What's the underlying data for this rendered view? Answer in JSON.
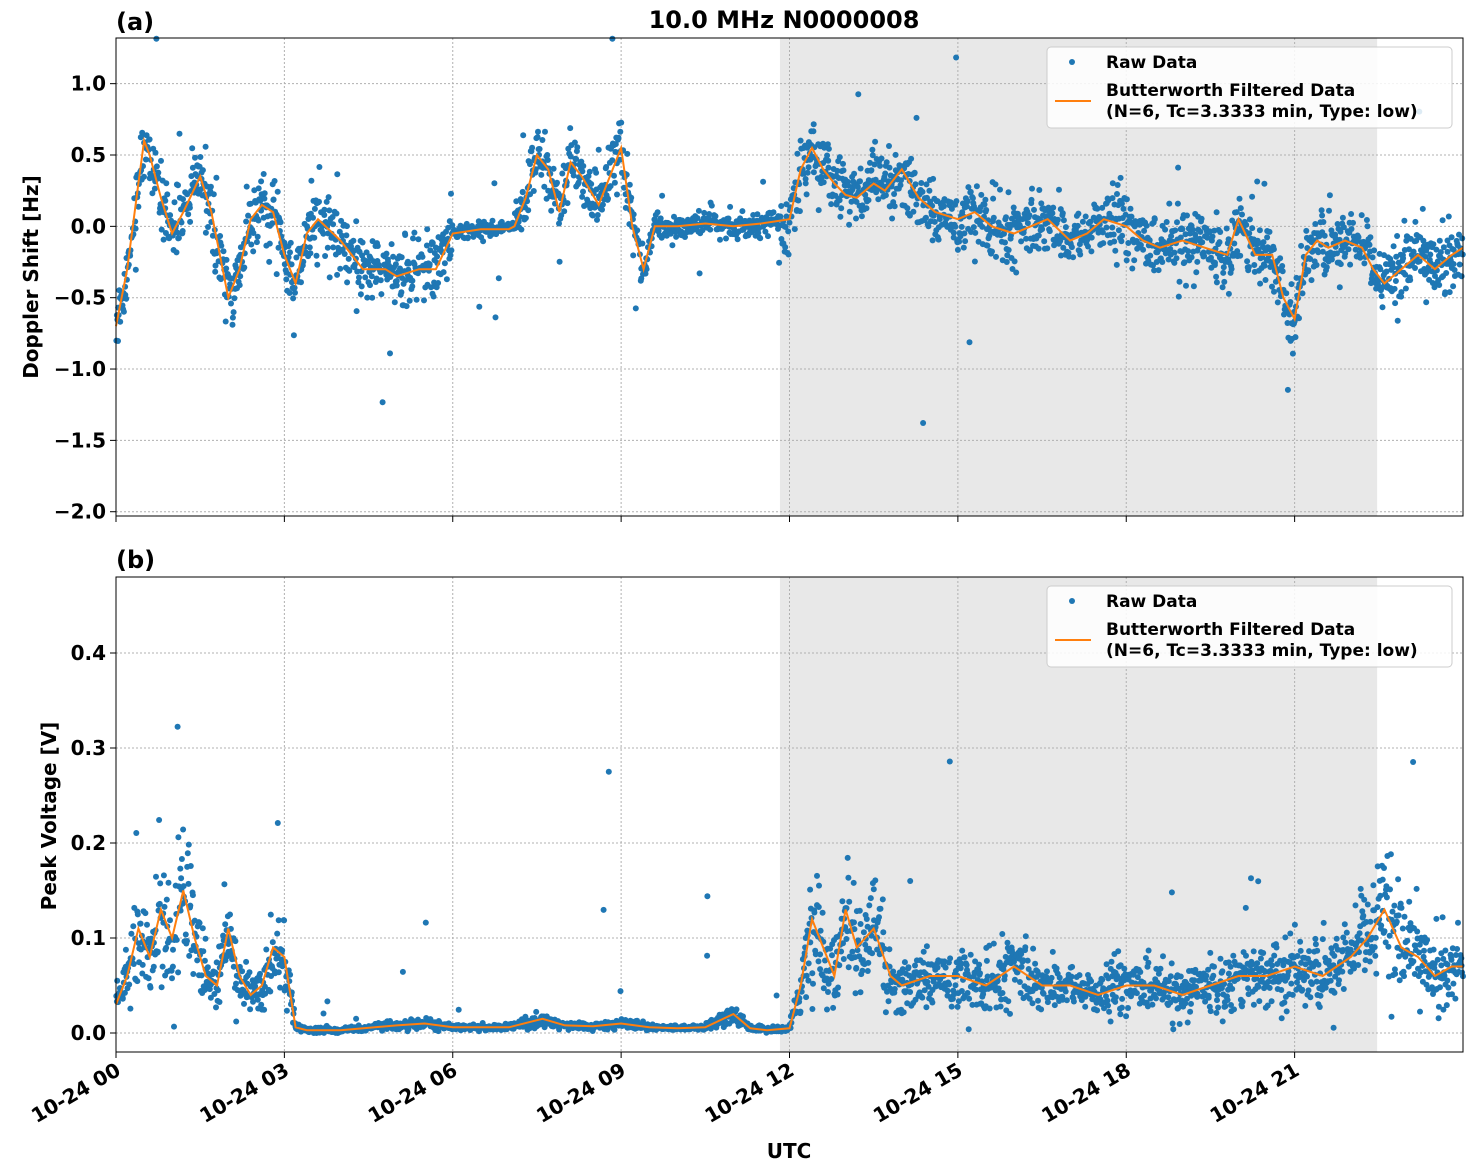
{
  "chart_data": [
    {
      "type": "scatter",
      "panel_label": "(a)",
      "title": "10.0 MHz N0000008",
      "xlabel": "",
      "ylabel": "Doppler Shift [Hz]",
      "xlim_hours": [
        0,
        24
      ],
      "ylim": [
        -2.03,
        1.32
      ],
      "yticks": [
        1.0,
        0.5,
        0.0,
        -0.5,
        -1.0,
        -1.5,
        -2.0
      ],
      "ytick_labels": [
        "1.0",
        "0.5",
        "0.0",
        "−0.5",
        "−1.0",
        "−1.5",
        "−2.0"
      ],
      "shaded_region_hours": [
        11.83,
        22.47
      ],
      "legend": {
        "placement": "top-right",
        "raw_label": "Raw Data",
        "filtered_label_line1": "Butterworth Filtered Data",
        "filtered_label_line2": "(N=6, Tc=3.3333 min, Type: low)"
      },
      "series": [
        {
          "name": "Butterworth Filtered Data",
          "color": "#ff7f0e",
          "x_hours": [
            0,
            0.2,
            0.4,
            0.5,
            0.6,
            0.8,
            1.0,
            1.2,
            1.5,
            1.7,
            2.0,
            2.2,
            2.4,
            2.6,
            2.8,
            3.0,
            3.2,
            3.4,
            3.6,
            4.0,
            4.4,
            4.8,
            5.0,
            5.4,
            5.7,
            6.0,
            6.5,
            7.0,
            7.1,
            7.3,
            7.5,
            7.7,
            7.9,
            8.1,
            8.3,
            8.6,
            9.0,
            9.2,
            9.4,
            9.6,
            10.0,
            10.5,
            11.0,
            11.5,
            12.0,
            12.2,
            12.4,
            12.6,
            12.8,
            13.0,
            13.2,
            13.5,
            13.7,
            14.0,
            14.3,
            14.6,
            15.0,
            15.3,
            15.6,
            16.0,
            16.3,
            16.6,
            17.0,
            17.3,
            17.6,
            18.0,
            18.3,
            18.6,
            19.0,
            19.4,
            19.8,
            20.0,
            20.3,
            20.6,
            20.8,
            21.0,
            21.2,
            21.4,
            21.6,
            21.9,
            22.2,
            22.4,
            22.6,
            22.9,
            23.2,
            23.5,
            23.8,
            24.0
          ],
          "y": [
            -0.7,
            -0.3,
            0.3,
            0.6,
            0.5,
            0.2,
            -0.05,
            0.1,
            0.35,
            0.1,
            -0.5,
            -0.3,
            0.05,
            0.15,
            0.1,
            -0.2,
            -0.4,
            -0.05,
            0.05,
            -0.1,
            -0.3,
            -0.3,
            -0.35,
            -0.3,
            -0.3,
            -0.05,
            -0.02,
            -0.02,
            0.0,
            0.2,
            0.5,
            0.4,
            0.1,
            0.45,
            0.35,
            0.15,
            0.55,
            0.0,
            -0.3,
            0.0,
            0.0,
            0.02,
            0.0,
            0.02,
            0.05,
            0.4,
            0.55,
            0.4,
            0.3,
            0.22,
            0.2,
            0.3,
            0.25,
            0.4,
            0.2,
            0.1,
            0.05,
            0.1,
            0.0,
            -0.05,
            0.0,
            0.05,
            -0.1,
            -0.05,
            0.05,
            0.0,
            -0.1,
            -0.15,
            -0.1,
            -0.15,
            -0.2,
            0.05,
            -0.2,
            -0.2,
            -0.5,
            -0.65,
            -0.2,
            -0.1,
            -0.15,
            -0.1,
            -0.15,
            -0.3,
            -0.4,
            -0.3,
            -0.2,
            -0.3,
            -0.2,
            -0.15
          ]
        },
        {
          "name": "Raw Data",
          "color": "#1f77b4",
          "note": "Dense scatter envelope around filtered trace; spread indicates noise"
        }
      ]
    },
    {
      "type": "scatter",
      "panel_label": "(b)",
      "title": "",
      "xlabel": "UTC",
      "ylabel": "Peak Voltage [V]",
      "xlim_hours": [
        0,
        24
      ],
      "ylim": [
        -0.02,
        0.48
      ],
      "yticks": [
        0.0,
        0.1,
        0.2,
        0.3,
        0.4
      ],
      "ytick_labels": [
        "0.0",
        "0.1",
        "0.2",
        "0.3",
        "0.4"
      ],
      "xticks_hours": [
        0,
        3,
        6,
        9,
        12,
        15,
        18,
        21
      ],
      "xtick_labels": [
        "10-24 00",
        "10-24 03",
        "10-24 06",
        "10-24 09",
        "10-24 12",
        "10-24 15",
        "10-24 18",
        "10-24 21"
      ],
      "shaded_region_hours": [
        11.83,
        22.47
      ],
      "legend": {
        "placement": "top-right",
        "raw_label": "Raw Data",
        "filtered_label_line1": "Butterworth Filtered Data",
        "filtered_label_line2": "(N=6, Tc=3.3333 min, Type: low)"
      },
      "series": [
        {
          "name": "Butterworth Filtered Data",
          "color": "#ff7f0e",
          "x_hours": [
            0,
            0.2,
            0.4,
            0.6,
            0.8,
            1.0,
            1.2,
            1.4,
            1.6,
            1.8,
            2.0,
            2.2,
            2.4,
            2.6,
            2.8,
            3.0,
            3.2,
            3.4,
            4.0,
            5.0,
            5.5,
            6.0,
            7.0,
            7.6,
            8.0,
            8.5,
            9.0,
            9.5,
            10.0,
            10.5,
            11.0,
            11.3,
            11.6,
            12.0,
            12.2,
            12.4,
            12.6,
            12.8,
            13.0,
            13.2,
            13.5,
            13.8,
            14.0,
            14.5,
            15.0,
            15.5,
            16.0,
            16.5,
            17.0,
            17.5,
            18.0,
            18.5,
            19.0,
            19.5,
            20.0,
            20.5,
            21.0,
            21.5,
            22.0,
            22.3,
            22.6,
            22.9,
            23.2,
            23.5,
            23.8,
            24.0
          ],
          "y": [
            0.03,
            0.06,
            0.11,
            0.08,
            0.13,
            0.1,
            0.15,
            0.1,
            0.06,
            0.05,
            0.11,
            0.06,
            0.04,
            0.05,
            0.09,
            0.08,
            0.006,
            0.003,
            0.003,
            0.008,
            0.01,
            0.006,
            0.006,
            0.015,
            0.008,
            0.007,
            0.01,
            0.006,
            0.005,
            0.006,
            0.02,
            0.005,
            0.003,
            0.005,
            0.05,
            0.12,
            0.09,
            0.06,
            0.13,
            0.09,
            0.11,
            0.06,
            0.05,
            0.06,
            0.06,
            0.05,
            0.07,
            0.05,
            0.05,
            0.04,
            0.05,
            0.05,
            0.04,
            0.05,
            0.06,
            0.06,
            0.07,
            0.06,
            0.08,
            0.1,
            0.13,
            0.09,
            0.08,
            0.06,
            0.07,
            0.07
          ]
        },
        {
          "name": "Raw Data",
          "color": "#1f77b4",
          "note": "Dense scatter envelope around filtered trace; spread indicates noise"
        }
      ]
    }
  ],
  "colors": {
    "raw": "#1f77b4",
    "filtered": "#ff7f0e",
    "shade": "#e8e8e8"
  }
}
